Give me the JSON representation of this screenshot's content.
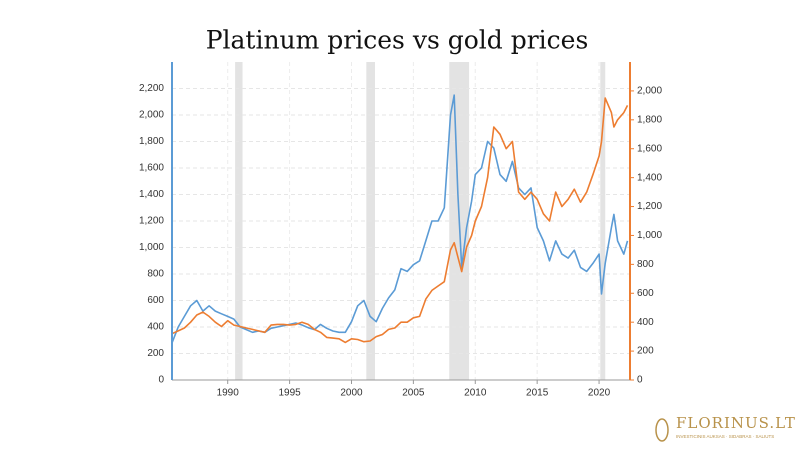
{
  "chart_data": {
    "type": "line",
    "title": "Platinum prices vs gold prices",
    "x": [
      1985.5,
      1986,
      1986.5,
      1987,
      1987.5,
      1988,
      1988.5,
      1989,
      1989.5,
      1990,
      1990.5,
      1991,
      1991.5,
      1992,
      1992.5,
      1993,
      1993.5,
      1994,
      1994.5,
      1995,
      1995.5,
      1996,
      1996.5,
      1997,
      1997.5,
      1998,
      1998.5,
      1999,
      1999.5,
      2000,
      2000.5,
      2001,
      2001.5,
      2002,
      2002.5,
      2003,
      2003.5,
      2004,
      2004.5,
      2005,
      2005.5,
      2006,
      2006.5,
      2007,
      2007.5,
      2008,
      2008.3,
      2008.6,
      2008.9,
      2009.3,
      2009.7,
      2010,
      2010.5,
      2011,
      2011.5,
      2012,
      2012.5,
      2013,
      2013.5,
      2014,
      2014.5,
      2015,
      2015.5,
      2016,
      2016.5,
      2017,
      2017.5,
      2018,
      2018.5,
      2019,
      2019.5,
      2020,
      2020.2,
      2020.5,
      2021,
      2021.2,
      2021.5,
      2022,
      2022.3
    ],
    "series": [
      {
        "name": "Platinum",
        "color": "#5b9bd5",
        "axis": "y",
        "values": [
          280,
          400,
          480,
          560,
          600,
          520,
          560,
          520,
          500,
          480,
          460,
          400,
          380,
          360,
          370,
          360,
          390,
          400,
          410,
          420,
          430,
          415,
          395,
          380,
          420,
          390,
          370,
          360,
          360,
          440,
          560,
          600,
          480,
          440,
          540,
          620,
          680,
          840,
          820,
          870,
          900,
          1050,
          1200,
          1200,
          1300,
          2000,
          2150,
          1400,
          850,
          1150,
          1350,
          1550,
          1600,
          1800,
          1750,
          1550,
          1500,
          1650,
          1450,
          1400,
          1450,
          1150,
          1050,
          900,
          1050,
          950,
          920,
          980,
          850,
          820,
          880,
          950,
          650,
          880,
          1150,
          1250,
          1050,
          950,
          1050
        ]
      },
      {
        "name": "Gold",
        "color": "#ed7d31",
        "axis": "y2",
        "values": [
          320,
          340,
          360,
          400,
          450,
          470,
          440,
          400,
          370,
          410,
          380,
          370,
          360,
          350,
          340,
          330,
          380,
          385,
          385,
          380,
          385,
          400,
          385,
          350,
          330,
          295,
          290,
          285,
          260,
          285,
          280,
          265,
          270,
          300,
          315,
          350,
          360,
          400,
          400,
          430,
          440,
          560,
          620,
          650,
          680,
          900,
          950,
          850,
          750,
          920,
          1000,
          1100,
          1200,
          1400,
          1750,
          1700,
          1600,
          1650,
          1300,
          1250,
          1300,
          1250,
          1150,
          1100,
          1300,
          1200,
          1250,
          1320,
          1230,
          1300,
          1420,
          1550,
          1650,
          1950,
          1850,
          1750,
          1800,
          1850,
          1900
        ]
      }
    ],
    "xlim": [
      1985.5,
      2022.5
    ],
    "xticks": [
      1990,
      1995,
      2000,
      2005,
      2010,
      2015,
      2020
    ],
    "ylim": [
      0,
      2400
    ],
    "yticks": [
      0,
      200,
      400,
      600,
      800,
      {
        "value": 1000,
        "label": "1,000"
      },
      {
        "value": 1200,
        "label": "1,200"
      },
      {
        "value": 1400,
        "label": "1,400"
      },
      {
        "value": 1600,
        "label": "1,600"
      },
      {
        "value": 1800,
        "label": "1,800"
      },
      {
        "value": 2000,
        "label": "2,000"
      },
      {
        "value": 2200,
        "label": "2,200"
      }
    ],
    "y2lim": [
      0,
      2200
    ],
    "y2ticks": [
      0,
      200,
      400,
      600,
      800,
      {
        "value": 1000,
        "label": "1,000"
      },
      {
        "value": 1200,
        "label": "1,200"
      },
      {
        "value": 1400,
        "label": "1,400"
      },
      {
        "value": 1600,
        "label": "1,600"
      },
      {
        "value": 1800,
        "label": "1,800"
      },
      {
        "value": 2000,
        "label": "2,000"
      }
    ],
    "shaded_periods": [
      [
        1990.6,
        1991.2
      ],
      [
        2001.2,
        2001.9
      ],
      [
        2007.9,
        2009.5
      ],
      [
        2020.1,
        2020.5
      ]
    ],
    "grid": true
  },
  "logo": {
    "name": "FLORINUS.LT",
    "tagline": "INVESTICINIS AUKSAS · SIDABRAS · SALIUTS"
  }
}
